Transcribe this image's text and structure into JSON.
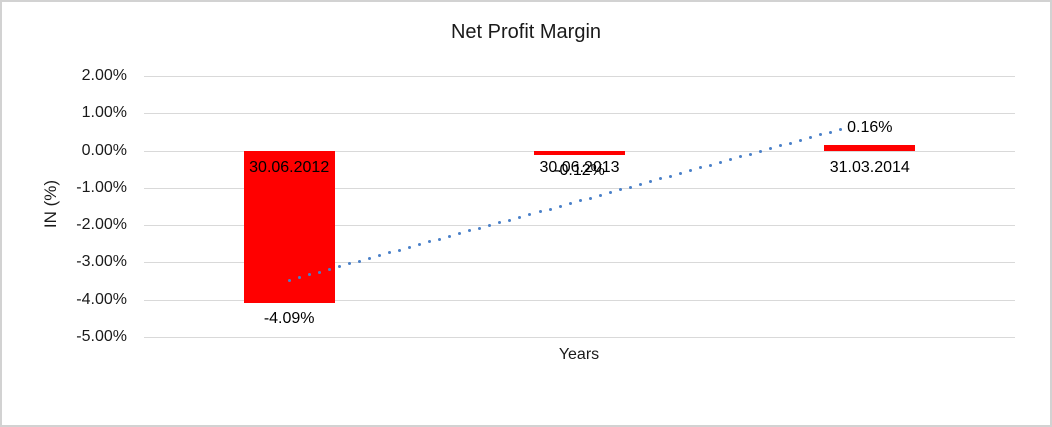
{
  "window": {
    "background_color": "#ffffff",
    "frame_color": "#d2d2d2"
  },
  "chart_data": {
    "type": "bar",
    "title": "Net Profit Margin",
    "xlabel": "Years",
    "ylabel": "IN (%)",
    "categories": [
      "30.06.2012",
      "30.06.2013",
      "31.03.2014"
    ],
    "values": [
      -4.09,
      -0.12,
      0.16
    ],
    "data_labels": [
      "-4.09%",
      "-0.12%",
      "0.16%"
    ],
    "y_ticks": [
      "2.00%",
      "1.00%",
      "0.00%",
      "-1.00%",
      "-2.00%",
      "-3.00%",
      "-4.00%",
      "-5.00%"
    ],
    "y_tick_values": [
      2,
      1,
      0,
      -1,
      -2,
      -3,
      -4,
      -5
    ],
    "ylim": [
      -5,
      2
    ],
    "grid": true,
    "legend": "none",
    "bar_color": "#ff0000",
    "gridline_color": "#d9d9d9",
    "trendline": {
      "type": "linear",
      "style": "dotted",
      "color": "#4a80c8",
      "start_value": -3.48,
      "end_value": 0.78
    }
  }
}
